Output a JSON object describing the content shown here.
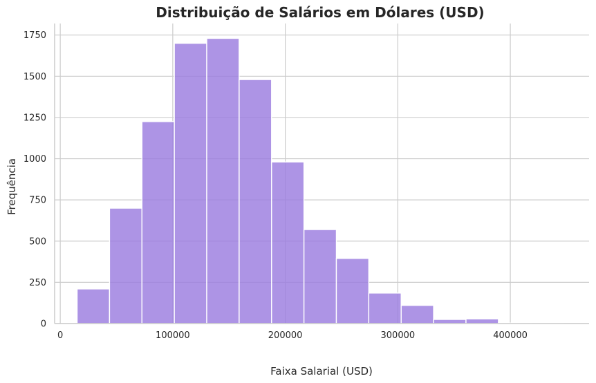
{
  "chart_data": {
    "type": "bar",
    "title": "Distribuição de Salários em Dólares (USD)",
    "xlabel": "Faixa Salarial (USD)",
    "ylabel": "Frequência",
    "xlim": [
      -5000,
      470000
    ],
    "ylim": [
      0,
      1820
    ],
    "xticks": [
      0,
      100000,
      200000,
      300000,
      400000
    ],
    "xtick_labels": [
      "0",
      "100000",
      "200000",
      "300000",
      "400000"
    ],
    "yticks": [
      0,
      250,
      500,
      750,
      1000,
      1250,
      1500,
      1750
    ],
    "ytick_labels": [
      "0",
      "250",
      "500",
      "750",
      "1000",
      "1250",
      "1500",
      "1750"
    ],
    "grid": true,
    "bar_color": "#9b7ddf",
    "bins": [
      {
        "x0": 15000,
        "x1": 43800,
        "value": 210
      },
      {
        "x0": 43800,
        "x1": 72600,
        "value": 700
      },
      {
        "x0": 72600,
        "x1": 101400,
        "value": 1225
      },
      {
        "x0": 101400,
        "x1": 130200,
        "value": 1700
      },
      {
        "x0": 130200,
        "x1": 159000,
        "value": 1730
      },
      {
        "x0": 159000,
        "x1": 187800,
        "value": 1480
      },
      {
        "x0": 187800,
        "x1": 216600,
        "value": 980
      },
      {
        "x0": 216600,
        "x1": 245400,
        "value": 570
      },
      {
        "x0": 245400,
        "x1": 274200,
        "value": 395
      },
      {
        "x0": 274200,
        "x1": 303000,
        "value": 185
      },
      {
        "x0": 303000,
        "x1": 331800,
        "value": 110
      },
      {
        "x0": 331800,
        "x1": 360600,
        "value": 25
      },
      {
        "x0": 360600,
        "x1": 389400,
        "value": 28
      },
      {
        "x0": 389400,
        "x1": 418200,
        "value": 3
      },
      {
        "x0": 418200,
        "x1": 447000,
        "value": 2
      }
    ]
  }
}
